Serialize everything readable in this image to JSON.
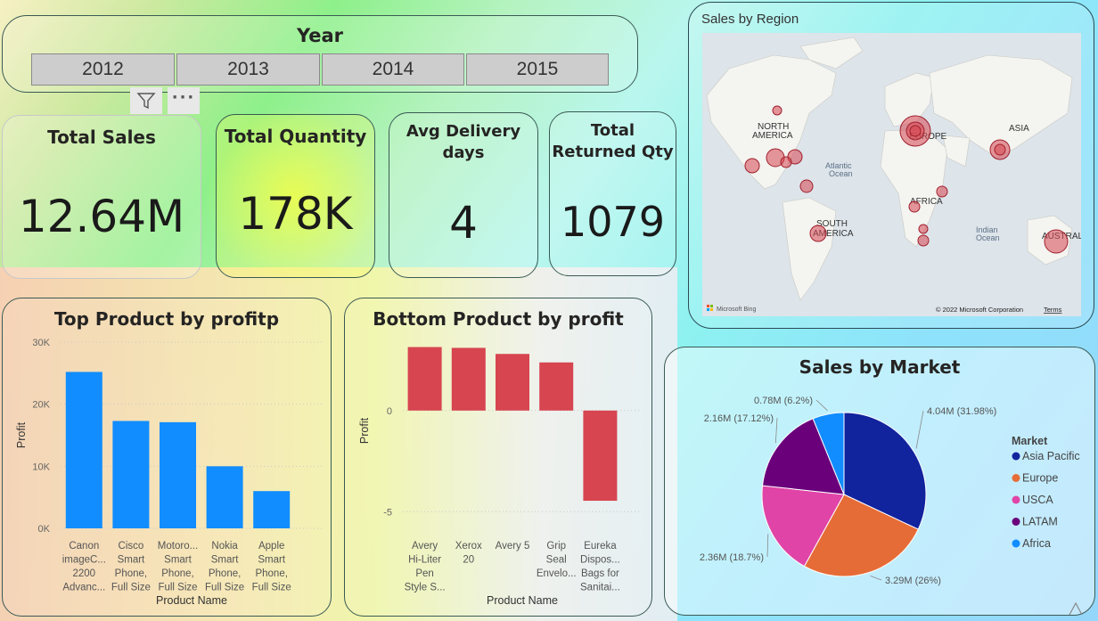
{
  "year_slicer": {
    "title": "Year",
    "years": [
      "2012",
      "2013",
      "2014",
      "2015"
    ]
  },
  "kpis": {
    "total_sales": {
      "title": "Total Sales",
      "value": "12.64M"
    },
    "total_quantity": {
      "title": "Total Quantity",
      "value": "178K"
    },
    "avg_delivery": {
      "title_line1": "Avg Delivery",
      "title_line2": "days",
      "value": "4"
    },
    "total_returned": {
      "title_line1": "Total",
      "title_line2": "Returned Qty",
      "value": "1079"
    }
  },
  "map": {
    "title": "Sales by Region",
    "labels": {
      "north_america_1": "NORTH",
      "north_america_2": "AMERICA",
      "europe": "EUROPE",
      "asia": "ASIA",
      "africa": "AFRICA",
      "south_america_1": "SOUTH",
      "south_america_2": "AMERICA",
      "australia": "AUSTRALIA",
      "atlantic_1": "Atlantic",
      "atlantic_2": "Ocean",
      "indian_1": "Indian",
      "indian_2": "Ocean"
    },
    "attribution": "Microsoft Bing",
    "copyright": "© 2022 Microsoft Corporation",
    "terms": "Terms"
  },
  "colors": {
    "top_bar": "#118dff",
    "bottom_bar": "#d64550",
    "asia_pacific": "#12239e",
    "europe": "#e66c37",
    "usca": "#e044a7",
    "latam": "#6b007b",
    "africa": "#118dff"
  },
  "chart_data": [
    {
      "type": "bar",
      "title": "Top Product by profitp",
      "xlabel": "Product Name",
      "ylabel": "Profit",
      "ylim": [
        0,
        30000
      ],
      "yticks": [
        0,
        10000,
        20000,
        30000
      ],
      "ytick_labels": [
        "0K",
        "10K",
        "20K",
        "30K"
      ],
      "categories": [
        [
          "Canon",
          "imageC...",
          "2200",
          "Advanc..."
        ],
        [
          "Cisco",
          "Smart",
          "Phone,",
          "Full Size"
        ],
        [
          "Motoro...",
          "Smart",
          "Phone,",
          "Full Size"
        ],
        [
          "Nokia",
          "Smart",
          "Phone,",
          "Full Size"
        ],
        [
          "Apple",
          "Smart",
          "Phone,",
          "Full Size"
        ]
      ],
      "values": [
        25200,
        17300,
        17100,
        10000,
        6000
      ]
    },
    {
      "type": "bar",
      "title": "Bottom Product by profit",
      "xlabel": "Product Name",
      "ylabel": "Profit",
      "ylim": [
        -6,
        4
      ],
      "yticks": [
        0,
        -5
      ],
      "ytick_labels": [
        "0",
        "-5"
      ],
      "categories": [
        [
          "Avery",
          "Hi-Liter",
          "Pen",
          "Style S..."
        ],
        [
          "Xerox",
          "20"
        ],
        [
          "Avery 5"
        ],
        [
          "Grip",
          "Seal",
          "Envelo..."
        ],
        [
          "Eureka",
          "Dispos...",
          "Bags for",
          "Sanitai..."
        ]
      ],
      "values": [
        3.14,
        3.1,
        2.8,
        2.38,
        -4.46
      ]
    },
    {
      "type": "pie",
      "title": "Sales by Market",
      "legend_title": "Market",
      "legend_position": "right",
      "series": [
        {
          "name": "Asia Pacific",
          "value": 4.04,
          "label": "4.04M (31.98%)"
        },
        {
          "name": "Europe",
          "value": 3.29,
          "label": "3.29M (26%)"
        },
        {
          "name": "USCA",
          "value": 2.36,
          "label": "2.36M (18.7%)"
        },
        {
          "name": "LATAM",
          "value": 2.16,
          "label": "2.16M (17.12%)"
        },
        {
          "name": "Africa",
          "value": 0.78,
          "label": "0.78M (6.2%)"
        }
      ]
    }
  ]
}
